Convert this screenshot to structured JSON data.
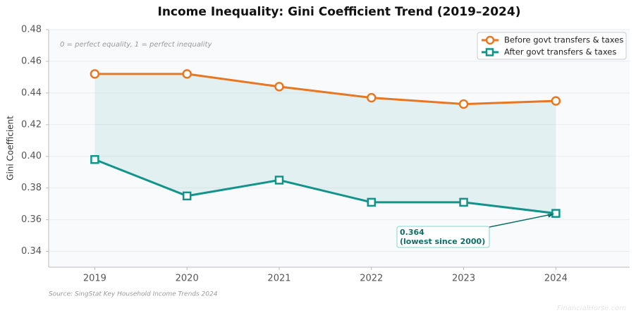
{
  "chart_data": {
    "type": "line",
    "title": "Income Inequality: Gini Coefficient Trend (2019–2024)",
    "subtitle": "0 = perfect equality, 1 = perfect inequality",
    "y_label": "Gini Coefficient",
    "source": "Source: SingStat Key Household Income Trends 2024",
    "watermark": "FinancialHorse.com",
    "x": [
      2019,
      2020,
      2021,
      2022,
      2023,
      2024
    ],
    "series": [
      {
        "name": "Before govt transfers & taxes",
        "color": "#e87722",
        "marker": "circle",
        "values": [
          0.452,
          0.452,
          0.444,
          0.437,
          0.433,
          0.435
        ]
      },
      {
        "name": "After govt transfers & taxes",
        "color": "#12948a",
        "marker": "square",
        "values": [
          0.398,
          0.375,
          0.385,
          0.371,
          0.371,
          0.364
        ]
      }
    ],
    "fill_between": true,
    "xlim": [
      2018.5,
      2024.8
    ],
    "xticks": [
      2019,
      2020,
      2021,
      2022,
      2023,
      2024
    ],
    "ylim": [
      0.33,
      0.48
    ],
    "yticks": [
      0.34,
      0.36,
      0.38,
      {
        "value": 0.4,
        "label": "0.40"
      },
      0.42,
      0.44,
      0.46,
      0.48
    ],
    "grid": true,
    "legend": "upper-right",
    "annotation": {
      "lines": [
        "0.364",
        "(lowest since 2000)"
      ],
      "x": 2024,
      "y": 0.364
    }
  }
}
